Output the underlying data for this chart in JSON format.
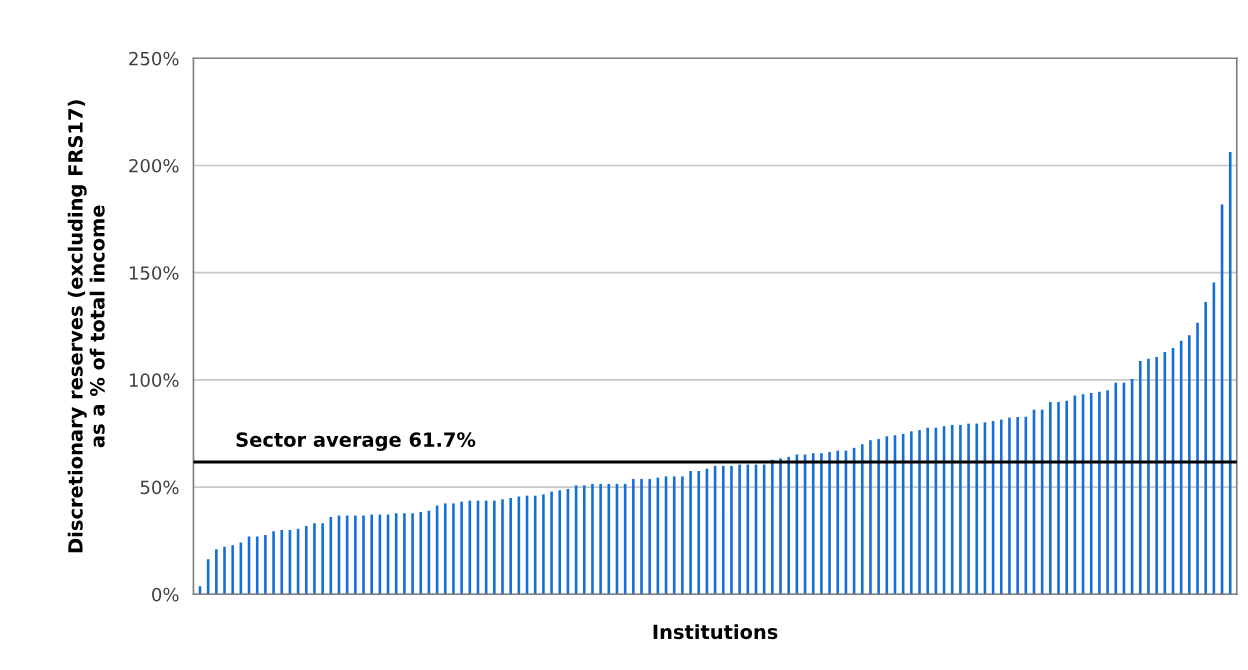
{
  "chart_data": {
    "type": "bar",
    "xlabel": "Institutions",
    "ylabel": "Discretionary reserves (excluding FRS17)\nas a % of total income",
    "categories": [
      null,
      null,
      null,
      null,
      null,
      null,
      null,
      null,
      null,
      null,
      null,
      null,
      null,
      null,
      null,
      null,
      null,
      null,
      null,
      null,
      null,
      null,
      null,
      null,
      null,
      null,
      null,
      null,
      null,
      null,
      null,
      null,
      null,
      null,
      null,
      null,
      null,
      null,
      null,
      null,
      null,
      null,
      null,
      null,
      null,
      null,
      null,
      null,
      null,
      null,
      null,
      null,
      null,
      null,
      null,
      null,
      null,
      null,
      null,
      null,
      null,
      null,
      null,
      null,
      null,
      null,
      null,
      null,
      null,
      null,
      null,
      null,
      null,
      null,
      null,
      null,
      null,
      null,
      null,
      null,
      null,
      null,
      null,
      null,
      null,
      null,
      null,
      null,
      null,
      null,
      null,
      null,
      null,
      null,
      null,
      null,
      null,
      null,
      null,
      null,
      null,
      null,
      null,
      null,
      null,
      null,
      null,
      null,
      null,
      null,
      null,
      null,
      null,
      null,
      null,
      null,
      null,
      null,
      null,
      null,
      null,
      null,
      null,
      null,
      null,
      null,
      null
    ],
    "values": [
      3.7,
      16.3,
      21,
      22.2,
      22.9,
      24.1,
      27,
      27,
      27.7,
      29.4,
      30,
      30,
      30.6,
      31.9,
      33.1,
      33.1,
      36.1,
      36.7,
      36.7,
      36.7,
      36.7,
      37.2,
      37.2,
      37.2,
      37.8,
      37.8,
      37.8,
      38.4,
      39,
      41.4,
      42.4,
      42.4,
      43.2,
      43.7,
      43.7,
      43.7,
      43.7,
      44.3,
      44.9,
      45.6,
      46,
      46,
      46.6,
      47.9,
      48.5,
      49.1,
      50.8,
      50.8,
      51.5,
      51.5,
      51.5,
      51.5,
      51.5,
      53.8,
      53.8,
      53.8,
      54.4,
      55,
      55,
      55,
      57.5,
      57.5,
      58.6,
      59.9,
      59.9,
      59.9,
      60.5,
      60.5,
      60.5,
      60.5,
      62.8,
      63.4,
      64.1,
      65.2,
      65.2,
      65.8,
      65.8,
      66.4,
      67,
      67,
      68.3,
      70,
      71.9,
      72.4,
      73.7,
      74.2,
      74.8,
      76,
      76.6,
      77.7,
      77.7,
      78.4,
      79,
      79,
      79.6,
      79.6,
      80.2,
      80.8,
      81.5,
      82.4,
      82.7,
      82.8,
      86.1,
      86.1,
      89.7,
      89.7,
      90.3,
      92.7,
      93.3,
      93.9,
      94.5,
      95.2,
      98.7,
      98.7,
      100.4,
      108.8,
      109.9,
      110.7,
      113,
      114.9,
      118.3,
      120.8,
      126.7,
      136.3,
      145.4,
      181.8,
      206.3
    ],
    "color": "#1570d6",
    "ylim": [
      0,
      250
    ],
    "yticks": [
      {
        "value": 0,
        "label": "0%"
      },
      {
        "value": 50,
        "label": "50%"
      },
      {
        "value": 100,
        "label": "100%"
      },
      {
        "value": 150,
        "label": "150%"
      },
      {
        "value": 200,
        "label": "200%"
      },
      {
        "value": 250,
        "label": "250%"
      }
    ],
    "grid": "y",
    "legend": false,
    "ref_lines": [
      {
        "axis": "y",
        "value": 61.7,
        "label": "Sector average 61.7%",
        "color": "#000000",
        "line_style": "solid"
      }
    ]
  }
}
